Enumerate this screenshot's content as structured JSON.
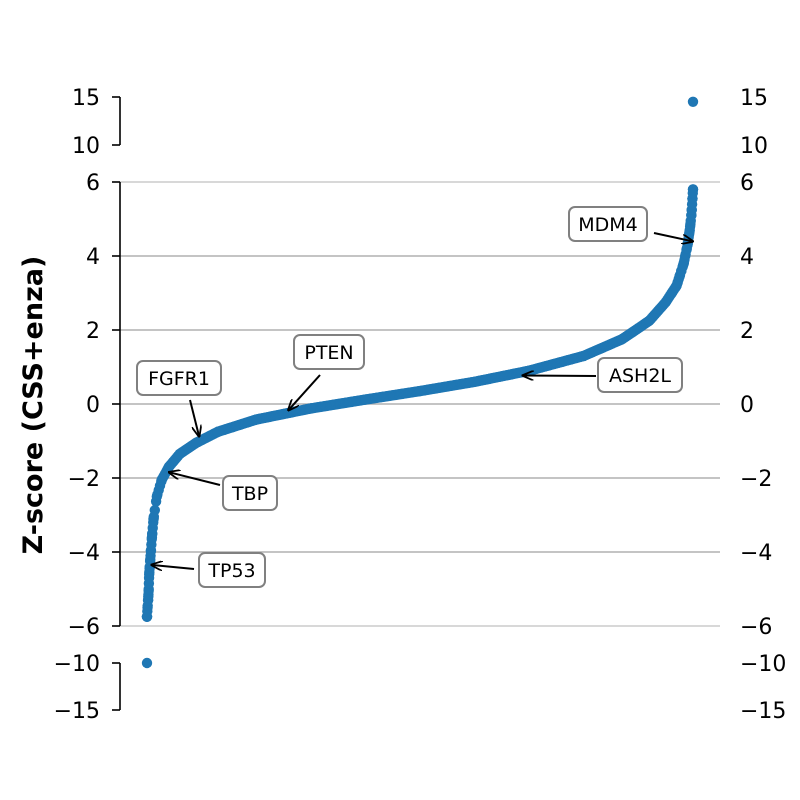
{
  "chart_data": {
    "type": "scatter",
    "title": "",
    "ylabel": "Z-score (CSS+enza)",
    "xlabel": "",
    "point_color": "#1f77b4",
    "grid": "horizontal on middle panel",
    "broken_axis": true,
    "panels": [
      {
        "name": "top",
        "ylim": [
          10,
          15
        ],
        "ticks": [
          10,
          15
        ]
      },
      {
        "name": "middle",
        "ylim": [
          -6,
          6
        ],
        "ticks": [
          -6,
          -4,
          -2,
          0,
          2,
          4,
          6
        ]
      },
      {
        "name": "bottom",
        "ylim": [
          -15,
          -10
        ],
        "ticks": [
          -15,
          -10
        ]
      }
    ],
    "tick_labels": {
      "top": [
        "15",
        "10"
      ],
      "middle": [
        "6",
        "4",
        "2",
        "0",
        "−2",
        "−4",
        "−6"
      ],
      "bottom": [
        "−10",
        "−15"
      ]
    },
    "x_domain": [
      0,
      1
    ],
    "curve": {
      "description": "sorted z-scores by rank (fraction)",
      "points": [
        [
          0.0,
          -10.0
        ],
        [
          0.0,
          -5.75
        ],
        [
          0.001,
          -5.5
        ],
        [
          0.002,
          -5.3
        ],
        [
          0.003,
          -5.05
        ],
        [
          0.004,
          -4.6
        ],
        [
          0.006,
          -4.2
        ],
        [
          0.009,
          -3.6
        ],
        [
          0.012,
          -3.1
        ],
        [
          0.018,
          -2.5
        ],
        [
          0.027,
          -2.05
        ],
        [
          0.04,
          -1.7
        ],
        [
          0.06,
          -1.35
        ],
        [
          0.09,
          -1.05
        ],
        [
          0.13,
          -0.75
        ],
        [
          0.2,
          -0.42
        ],
        [
          0.3,
          -0.12
        ],
        [
          0.4,
          0.12
        ],
        [
          0.5,
          0.35
        ],
        [
          0.6,
          0.6
        ],
        [
          0.7,
          0.9
        ],
        [
          0.8,
          1.3
        ],
        [
          0.87,
          1.75
        ],
        [
          0.92,
          2.25
        ],
        [
          0.95,
          2.75
        ],
        [
          0.97,
          3.2
        ],
        [
          0.983,
          3.8
        ],
        [
          0.99,
          4.3
        ],
        [
          0.994,
          4.7
        ],
        [
          0.997,
          5.1
        ],
        [
          0.999,
          5.55
        ],
        [
          1.0,
          5.8
        ],
        [
          1.0,
          14.5
        ]
      ]
    },
    "annotations": [
      {
        "label": "MDM4",
        "x": 0.998,
        "y": 4.4
      },
      {
        "label": "PTEN",
        "x": 0.26,
        "y": -0.15
      },
      {
        "label": "FGFR1",
        "x": 0.095,
        "y": -0.85
      },
      {
        "label": "ASH2L",
        "x": 0.69,
        "y": 0.77
      },
      {
        "label": "TBP",
        "x": 0.042,
        "y": -1.85
      },
      {
        "label": "TP53",
        "x": 0.01,
        "y": -4.35
      }
    ]
  }
}
